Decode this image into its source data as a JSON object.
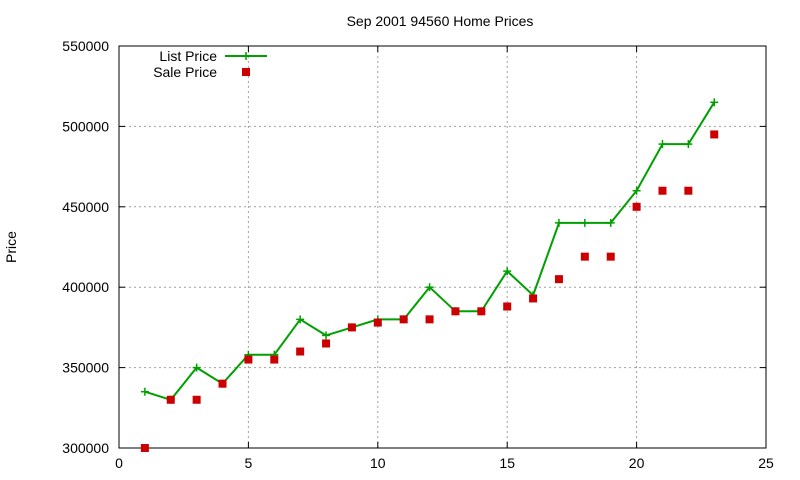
{
  "chart_data": {
    "type": "line",
    "title": "Sep 2001 94560 Home Prices",
    "xlabel": "",
    "ylabel": "Price",
    "xlim": [
      0,
      25
    ],
    "ylim": [
      300000,
      550000
    ],
    "x_ticks": [
      0,
      5,
      10,
      15,
      20,
      25
    ],
    "y_ticks": [
      300000,
      350000,
      400000,
      450000,
      500000,
      550000
    ],
    "grid": true,
    "legend_position": "top-left",
    "series": [
      {
        "name": "List Price",
        "style": "linespoints",
        "color": "#00a000",
        "marker": "plus",
        "x": [
          1,
          2,
          3,
          4,
          5,
          6,
          7,
          8,
          9,
          10,
          11,
          12,
          13,
          14,
          15,
          16,
          17,
          18,
          19,
          20,
          21,
          22,
          23
        ],
        "values": [
          335000,
          330000,
          350000,
          340000,
          358000,
          358000,
          380000,
          370000,
          375000,
          380000,
          380000,
          400000,
          385000,
          385000,
          410000,
          395000,
          440000,
          440000,
          440000,
          460000,
          489000,
          489000,
          515000
        ]
      },
      {
        "name": "Sale Price",
        "style": "points",
        "color": "#cc0000",
        "marker": "square",
        "x": [
          1,
          2,
          3,
          4,
          5,
          6,
          7,
          8,
          9,
          10,
          11,
          12,
          13,
          14,
          15,
          16,
          17,
          18,
          19,
          20,
          21,
          22,
          23
        ],
        "values": [
          300000,
          330000,
          330000,
          340000,
          355000,
          355000,
          360000,
          365000,
          375000,
          378000,
          380000,
          380000,
          385000,
          385000,
          388000,
          393000,
          405000,
          419000,
          419000,
          450000,
          460000,
          460000,
          495000
        ]
      }
    ]
  }
}
